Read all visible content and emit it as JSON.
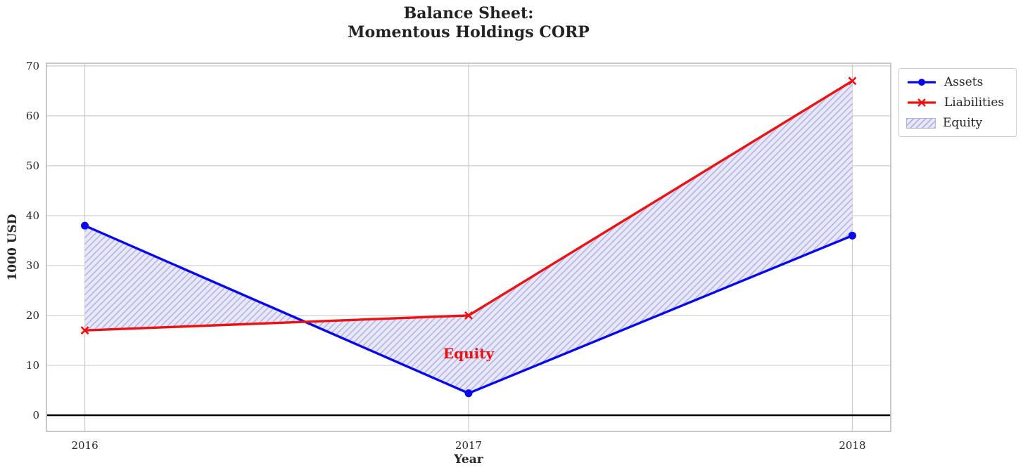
{
  "chart_data": {
    "type": "line",
    "title": "Balance Sheet:\nMomentous Holdings CORP",
    "xlabel": "Year",
    "ylabel": "1000 USD",
    "categories": [
      2016,
      2017,
      2018
    ],
    "series": [
      {
        "name": "Assets",
        "values": [
          38,
          4.4,
          36
        ],
        "color": "#0808ee",
        "marker": "circle"
      },
      {
        "name": "Liabilities",
        "values": [
          17,
          20,
          67
        ],
        "color": "#ee1111",
        "marker": "x"
      }
    ],
    "fill_between": {
      "label": "Equity",
      "between": [
        "Assets",
        "Liabilities"
      ],
      "fill_color": "#e8e8f9",
      "hatch_color": "#b0b0ea",
      "hatch": "//"
    },
    "annotation": {
      "text": "Equity",
      "x": 2017,
      "y": 12.4,
      "color": "#ee1111"
    },
    "legend": {
      "position": "upper right",
      "entries": [
        "Assets",
        "Liabilities",
        "Equity"
      ]
    },
    "xlim": [
      2015.9,
      2018.1
    ],
    "ylim": [
      -3.25,
      70.55
    ],
    "yticks": [
      0,
      10,
      20,
      30,
      40,
      50,
      60,
      70
    ],
    "xticks": [
      "2016",
      "2017",
      "2018"
    ],
    "grid": true,
    "zero_line": true,
    "colors": {
      "grid": "#cccccc",
      "border": "#c2c2c2",
      "zero_line": "#000000",
      "text": "#262626"
    }
  }
}
